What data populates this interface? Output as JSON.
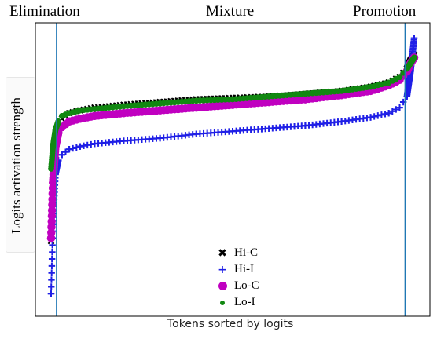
{
  "chart_data": {
    "type": "scatter",
    "region_labels": [
      "Elimination",
      "Mixture",
      "Promotion"
    ],
    "xlabel": "Tokens sorted by logits",
    "ylabel": "Logits activation strength",
    "xlim": [
      0,
      1
    ],
    "ylim": [
      0,
      1
    ],
    "x_ticks": [],
    "y_ticks": [],
    "grid": false,
    "legend_position": "bottom-center",
    "vertical_lines": [
      0.015,
      0.975
    ],
    "series": [
      {
        "name": "Hi-C",
        "marker": "x",
        "color": "#000000",
        "x": [
          0.0,
          0.005,
          0.012,
          0.02,
          0.03,
          0.05,
          0.08,
          0.12,
          0.2,
          0.3,
          0.4,
          0.5,
          0.6,
          0.7,
          0.8,
          0.88,
          0.93,
          0.96,
          0.98,
          0.99,
          1.0
        ],
        "y": [
          0.24,
          0.5,
          0.62,
          0.66,
          0.68,
          0.7,
          0.71,
          0.72,
          0.73,
          0.74,
          0.75,
          0.755,
          0.76,
          0.77,
          0.78,
          0.795,
          0.81,
          0.83,
          0.86,
          0.89,
          0.91
        ]
      },
      {
        "name": "Hi-I",
        "marker": "+",
        "color": "#1f1fe6",
        "x": [
          0.0,
          0.005,
          0.012,
          0.02,
          0.03,
          0.05,
          0.08,
          0.12,
          0.2,
          0.3,
          0.4,
          0.5,
          0.6,
          0.7,
          0.8,
          0.88,
          0.93,
          0.96,
          0.98,
          0.99,
          1.0
        ],
        "y": [
          0.05,
          0.3,
          0.48,
          0.53,
          0.55,
          0.57,
          0.58,
          0.59,
          0.6,
          0.61,
          0.625,
          0.635,
          0.645,
          0.655,
          0.67,
          0.685,
          0.7,
          0.72,
          0.76,
          0.85,
          0.97
        ]
      },
      {
        "name": "Lo-C",
        "marker": "o",
        "color": "#c000c0",
        "x": [
          0.0,
          0.005,
          0.012,
          0.02,
          0.03,
          0.05,
          0.08,
          0.12,
          0.2,
          0.3,
          0.4,
          0.5,
          0.6,
          0.7,
          0.8,
          0.88,
          0.93,
          0.96,
          0.98,
          0.99,
          1.0
        ],
        "y": [
          0.25,
          0.45,
          0.58,
          0.63,
          0.65,
          0.67,
          0.68,
          0.69,
          0.7,
          0.71,
          0.72,
          0.73,
          0.74,
          0.75,
          0.765,
          0.78,
          0.8,
          0.82,
          0.85,
          0.88,
          0.9
        ]
      },
      {
        "name": "Lo-I",
        "marker": "o",
        "color": "#118811",
        "x": [
          0.0,
          0.005,
          0.012,
          0.02,
          0.03,
          0.05,
          0.08,
          0.12,
          0.2,
          0.3,
          0.4,
          0.5,
          0.6,
          0.7,
          0.8,
          0.88,
          0.93,
          0.96,
          0.98,
          0.99,
          1.0
        ],
        "y": [
          0.5,
          0.58,
          0.64,
          0.67,
          0.69,
          0.7,
          0.71,
          0.715,
          0.725,
          0.735,
          0.745,
          0.75,
          0.76,
          0.77,
          0.78,
          0.795,
          0.81,
          0.83,
          0.86,
          0.88,
          0.9
        ]
      }
    ]
  }
}
